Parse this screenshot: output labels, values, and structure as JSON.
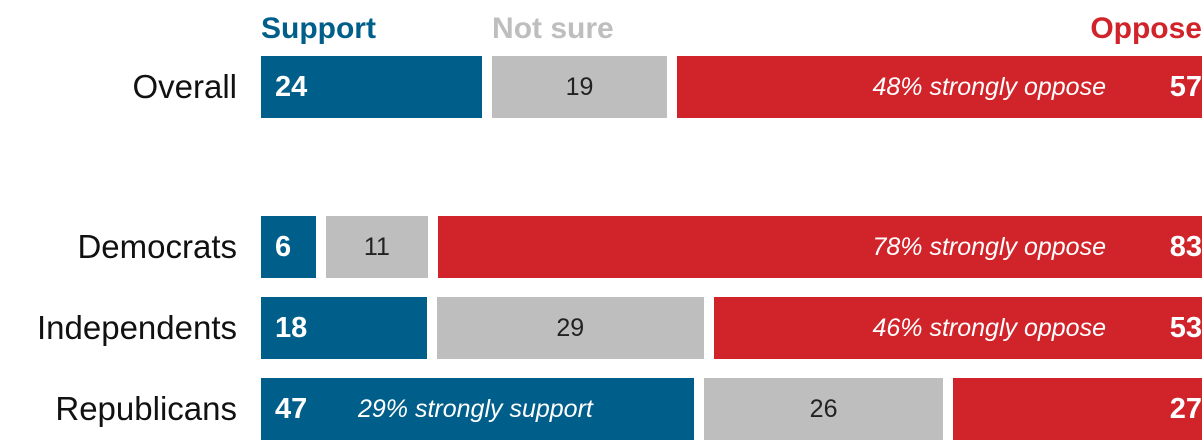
{
  "chart_data": {
    "type": "bar",
    "orientation": "horizontal-stacked",
    "legend_labels": {
      "support": "Support",
      "not_sure": "Not sure",
      "oppose": "Oppose"
    },
    "colors": {
      "support": "#005e8a",
      "not_sure": "#bebebe",
      "oppose": "#d1232a"
    },
    "rows": [
      {
        "label": "Overall",
        "support": 24,
        "not_sure": 19,
        "oppose": 57,
        "note": "48% strongly oppose",
        "note_on": "oppose"
      },
      {
        "label": "Democrats",
        "support": 6,
        "not_sure": 11,
        "oppose": 83,
        "note": "78% strongly oppose",
        "note_on": "oppose"
      },
      {
        "label": "Independents",
        "support": 18,
        "not_sure": 29,
        "oppose": 53,
        "note": "46% strongly oppose",
        "note_on": "oppose"
      },
      {
        "label": "Republicans",
        "support": 47,
        "not_sure": 26,
        "oppose": 27,
        "note": "29% strongly support",
        "note_on": "support"
      }
    ]
  }
}
